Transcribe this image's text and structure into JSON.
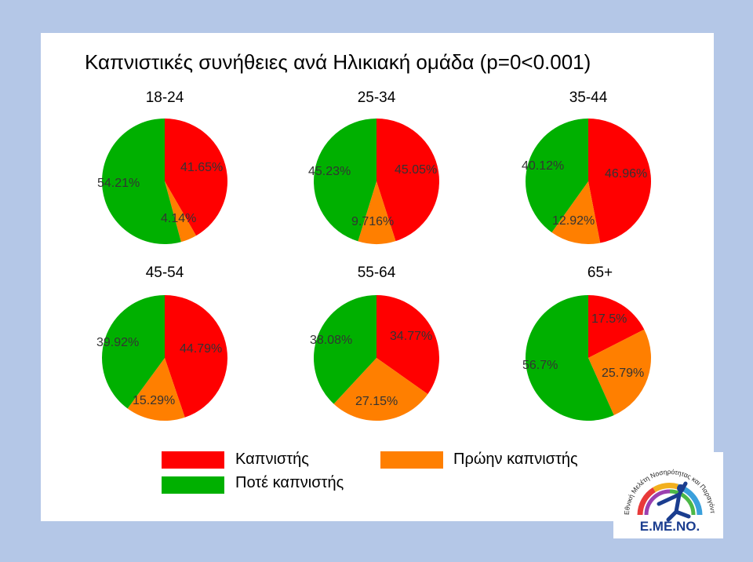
{
  "colors": {
    "smoker": "#ff0000",
    "former_smoker": "#ff7f00",
    "never_smoker": "#00b000",
    "background": "#b4c7e7"
  },
  "slide": {
    "title": "Καπνιστικές συνήθειες ανά Ηλικιακή ομάδα (p=0<0.001)"
  },
  "chart_data": [
    {
      "type": "pie",
      "title": "18-24",
      "slices": [
        {
          "category": "Καπνιστής",
          "value": 41.65,
          "label": "41.65%"
        },
        {
          "category": "Πρώην καπνιστής",
          "value": 4.14,
          "label": "4.14%"
        },
        {
          "category": "Ποτέ καπνιστής",
          "value": 54.21,
          "label": "54.21%"
        }
      ]
    },
    {
      "type": "pie",
      "title": "25-34",
      "slices": [
        {
          "category": "Καπνιστής",
          "value": 45.05,
          "label": "45.05%"
        },
        {
          "category": "Πρώην καπνιστής",
          "value": 9.716,
          "label": "9.716%"
        },
        {
          "category": "Ποτέ καπνιστής",
          "value": 45.23,
          "label": "45.23%"
        }
      ]
    },
    {
      "type": "pie",
      "title": "35-44",
      "slices": [
        {
          "category": "Καπνιστής",
          "value": 46.96,
          "label": "46.96%"
        },
        {
          "category": "Πρώην καπνιστής",
          "value": 12.92,
          "label": "12.92%"
        },
        {
          "category": "Ποτέ καπνιστής",
          "value": 40.12,
          "label": "40.12%"
        }
      ]
    },
    {
      "type": "pie",
      "title": "45-54",
      "slices": [
        {
          "category": "Καπνιστής",
          "value": 44.79,
          "label": "44.79%"
        },
        {
          "category": "Πρώην καπνιστής",
          "value": 15.29,
          "label": "15.29%"
        },
        {
          "category": "Ποτέ καπνιστής",
          "value": 39.92,
          "label": "39.92%"
        }
      ]
    },
    {
      "type": "pie",
      "title": "55-64",
      "slices": [
        {
          "category": "Καπνιστής",
          "value": 34.77,
          "label": "34.77%"
        },
        {
          "category": "Πρώην καπνιστής",
          "value": 27.15,
          "label": "27.15%"
        },
        {
          "category": "Ποτέ καπνιστής",
          "value": 38.08,
          "label": "38.08%"
        }
      ]
    },
    {
      "type": "pie",
      "title": "65+",
      "slices": [
        {
          "category": "Καπνιστής",
          "value": 17.5,
          "label": "17.5%"
        },
        {
          "category": "Πρώην καπνιστής",
          "value": 25.79,
          "label": "25.79%"
        },
        {
          "category": "Ποτέ καπνιστής",
          "value": 56.7,
          "label": "56.7%"
        }
      ]
    }
  ],
  "legend": {
    "smoker": "Καπνιστής",
    "former_smoker": "Πρώην καπνιστής",
    "never_smoker": "Ποτέ καπνιστής"
  },
  "logo": {
    "text": "Ε.ΜΕ.ΝΟ.",
    "arc_text": "Εθνική Μελέτη Νοσηρότητας και Παραγόντων Κινδύνου"
  }
}
